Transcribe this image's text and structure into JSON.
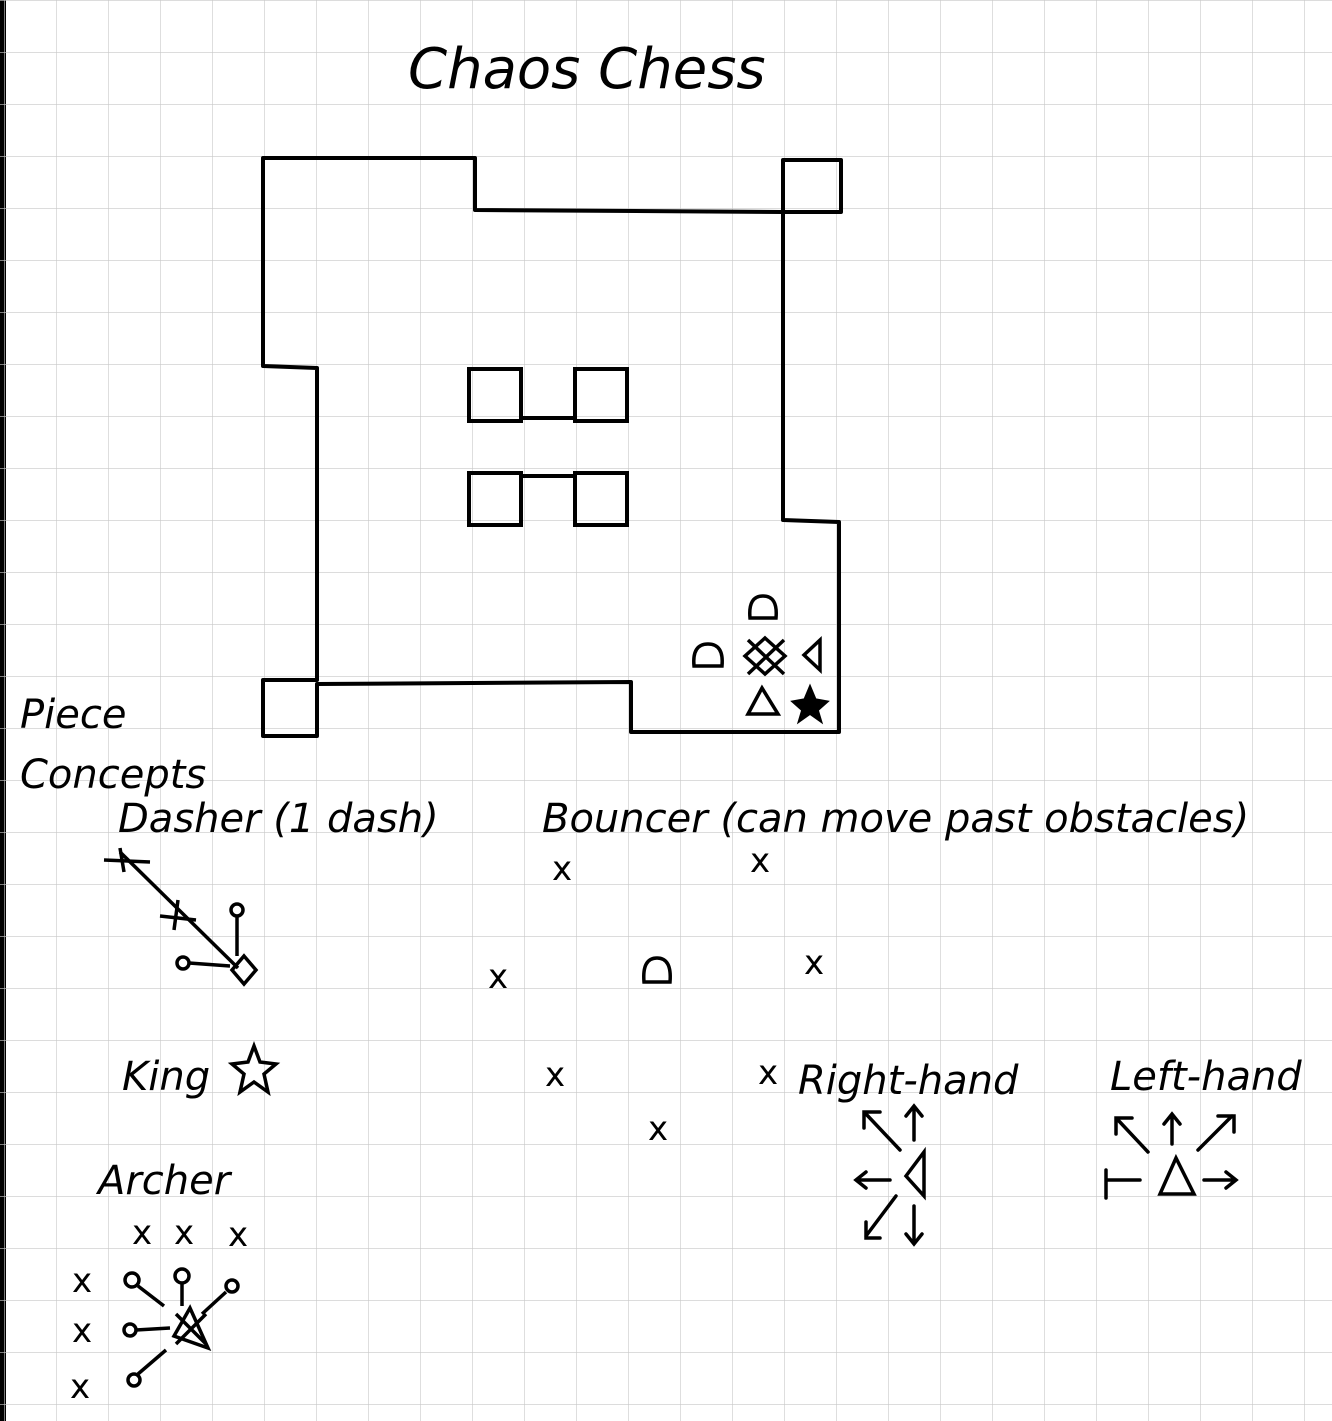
{
  "colors": {
    "ink": "#000000",
    "grid": "#c8c8c8",
    "paper": "#ffffff"
  },
  "title": "Chaos Chess",
  "section_heading_line1": "Piece",
  "section_heading_line2": "Concepts",
  "dasher": {
    "label": "Dasher (1 dash)",
    "marks": [
      "x",
      "x"
    ]
  },
  "bouncer": {
    "label": "Bouncer (can move past obstacles)",
    "marks": [
      "x",
      "x",
      "x",
      "x",
      "x",
      "x",
      "x"
    ]
  },
  "king": {
    "label": "King"
  },
  "archer": {
    "label": "Archer",
    "marks": [
      "x",
      "x",
      "x",
      "x",
      "x",
      "x"
    ]
  },
  "right_hand": {
    "label": "Right-hand"
  },
  "left_hand": {
    "label": "Left-hand"
  }
}
